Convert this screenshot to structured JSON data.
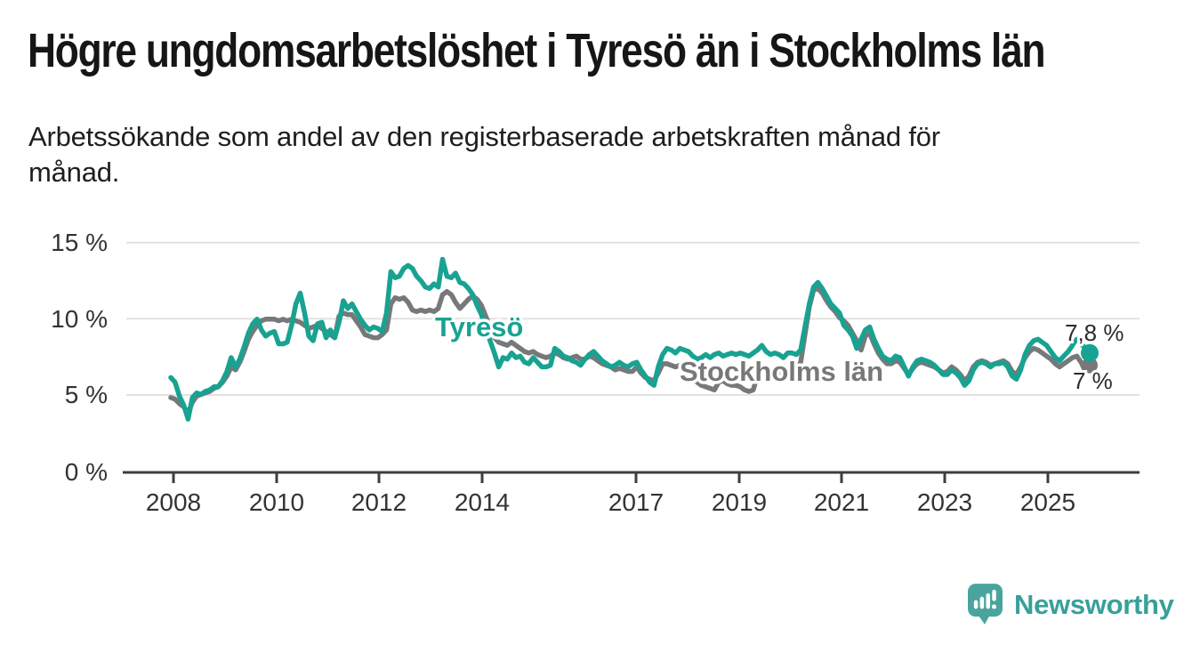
{
  "header": {
    "title": "Högre ungdomsarbetslöshet i Tyresö än i Stockholms län",
    "subtitle": "Arbetssökande som andel av den registerbaserade arbetskraften månad för\nmånad."
  },
  "chart_data": {
    "type": "line",
    "title": "Högre ungdomsarbetslöshet i Tyresö än i Stockholms län",
    "x_axis": {
      "tick_labels": [
        "2008",
        "2010",
        "2012",
        "2014",
        "2017",
        "2019",
        "2021",
        "2023",
        "2025"
      ],
      "range_start": "2008-01",
      "range_end": "2025-10",
      "frequency": "monthly"
    },
    "y_axis": {
      "tick_labels": [
        "15 %",
        "10 %",
        "5 %",
        "0 %"
      ],
      "unit": "%",
      "min": 0,
      "max": 15,
      "gridlines": true
    },
    "legend_position": "inline-labels",
    "series": [
      {
        "name": "Stockholms län",
        "color": "#77787a",
        "end_label": "7 %",
        "end_value": 7.0,
        "values": [
          4.9,
          4.8,
          4.5,
          4.3,
          3.9,
          4.6,
          5.0,
          5.1,
          5.2,
          5.3,
          5.5,
          5.6,
          5.9,
          6.3,
          6.9,
          6.7,
          7.2,
          7.9,
          8.7,
          9.2,
          9.6,
          9.9,
          10.0,
          10.0,
          10.0,
          9.9,
          10.0,
          9.9,
          10.0,
          9.9,
          9.8,
          9.6,
          9.4,
          9.5,
          9.6,
          9.4,
          9.2,
          9.0,
          8.8,
          10.2,
          10.4,
          10.3,
          10.3,
          9.9,
          9.5,
          9.0,
          8.9,
          8.8,
          8.8,
          9.0,
          9.3,
          11.0,
          11.4,
          11.3,
          11.4,
          11.1,
          10.6,
          10.5,
          10.6,
          10.5,
          10.6,
          10.5,
          10.7,
          11.6,
          11.8,
          11.6,
          11.1,
          10.7,
          11.0,
          11.3,
          11.5,
          11.3,
          10.9,
          10.2,
          9.5,
          8.8,
          8.5,
          8.4,
          8.3,
          8.5,
          8.3,
          8.1,
          7.9,
          7.8,
          7.9,
          7.7,
          7.6,
          7.5,
          7.6,
          7.8,
          7.7,
          7.5,
          7.4,
          7.5,
          7.6,
          7.4,
          7.4,
          7.6,
          7.5,
          7.3,
          7.1,
          7.0,
          6.9,
          6.7,
          6.8,
          6.7,
          6.6,
          6.6,
          6.9,
          6.5,
          6.2,
          6.1,
          6.0,
          6.5,
          7.1,
          7.1,
          7.0,
          6.9,
          7.0,
          6.9,
          6.7,
          6.2,
          5.9,
          5.7,
          5.6,
          5.5,
          5.4,
          5.9,
          6.0,
          5.8,
          5.7,
          5.7,
          5.6,
          5.4,
          5.3,
          5.4,
          6.4,
          6.9,
          6.7,
          6.5,
          6.6,
          6.5,
          6.4,
          6.5,
          6.6,
          6.7,
          7.2,
          9.0,
          10.8,
          11.9,
          12.0,
          11.7,
          11.2,
          10.8,
          10.5,
          10.1,
          9.9,
          9.6,
          9.1,
          8.6,
          8.0,
          8.9,
          9.1,
          8.4,
          7.8,
          7.4,
          7.1,
          7.1,
          7.3,
          7.2,
          6.8,
          6.4,
          6.8,
          7.1,
          7.2,
          7.1,
          7.0,
          6.9,
          6.7,
          6.5,
          6.6,
          6.9,
          6.7,
          6.4,
          6.0,
          6.3,
          6.9,
          7.2,
          7.3,
          7.2,
          7.0,
          7.1,
          7.2,
          7.3,
          7.1,
          6.6,
          6.4,
          6.9,
          7.5,
          7.9,
          8.1,
          8.0,
          7.8,
          7.6,
          7.4,
          7.1,
          6.9,
          7.1,
          7.3,
          7.5,
          7.6,
          7.2,
          6.6,
          7.0
        ]
      },
      {
        "name": "Tyresö",
        "color": "#18a292",
        "end_label": "7,8 %",
        "end_value": 7.8,
        "values": [
          6.2,
          5.9,
          5.0,
          4.4,
          3.5,
          4.9,
          5.2,
          5.1,
          5.3,
          5.4,
          5.6,
          5.6,
          6.0,
          6.6,
          7.5,
          6.9,
          7.4,
          8.2,
          9.1,
          9.7,
          10.0,
          9.3,
          8.9,
          9.1,
          9.2,
          8.4,
          8.4,
          8.5,
          9.6,
          11.0,
          11.7,
          10.4,
          8.9,
          8.6,
          9.7,
          9.8,
          8.8,
          9.3,
          8.8,
          9.8,
          11.2,
          10.7,
          11.0,
          10.5,
          10.0,
          9.6,
          9.3,
          9.5,
          9.4,
          9.2,
          10.4,
          13.1,
          12.7,
          12.8,
          13.3,
          13.5,
          13.3,
          12.8,
          12.5,
          12.1,
          12.0,
          12.3,
          12.1,
          13.9,
          12.8,
          12.7,
          13.0,
          12.4,
          12.3,
          12.0,
          11.6,
          10.9,
          10.3,
          9.4,
          8.6,
          7.8,
          6.9,
          7.5,
          7.4,
          7.8,
          7.5,
          7.6,
          7.2,
          7.1,
          7.5,
          7.2,
          6.9,
          6.9,
          7.0,
          8.1,
          7.9,
          7.6,
          7.5,
          7.3,
          7.2,
          7.0,
          7.4,
          7.7,
          7.9,
          7.6,
          7.3,
          7.1,
          6.9,
          7.0,
          7.2,
          7.0,
          6.9,
          7.1,
          7.2,
          6.7,
          6.3,
          5.9,
          5.7,
          6.9,
          7.7,
          8.1,
          8.0,
          7.8,
          8.1,
          8.0,
          7.9,
          7.6,
          7.4,
          7.5,
          7.7,
          7.5,
          7.7,
          7.8,
          7.6,
          7.7,
          7.8,
          7.7,
          7.8,
          7.7,
          7.6,
          7.8,
          8.0,
          8.3,
          7.9,
          7.7,
          7.8,
          7.7,
          7.5,
          7.8,
          7.8,
          7.7,
          8.0,
          9.5,
          11.0,
          12.1,
          12.4,
          12.0,
          11.5,
          11.0,
          10.7,
          10.4,
          9.6,
          9.3,
          8.9,
          8.1,
          8.7,
          9.3,
          9.5,
          8.7,
          8.1,
          7.6,
          7.4,
          7.3,
          7.6,
          7.5,
          6.9,
          6.3,
          6.9,
          7.3,
          7.4,
          7.3,
          7.2,
          7.0,
          6.7,
          6.4,
          6.4,
          6.7,
          6.5,
          6.2,
          5.7,
          6.0,
          6.7,
          7.1,
          7.2,
          7.1,
          6.9,
          7.1,
          7.1,
          7.2,
          6.9,
          6.3,
          6.1,
          6.7,
          7.7,
          8.3,
          8.6,
          8.7,
          8.5,
          8.3,
          7.9,
          7.5,
          7.3,
          7.6,
          7.9,
          8.3,
          8.7,
          8.4,
          8.1,
          7.8
        ]
      }
    ]
  },
  "footer": {
    "logo_text": "Newsworthy"
  },
  "colors": {
    "tyreso_teal": "#18a292",
    "stockholm_gray": "#77787a",
    "grid": "#e2e2e2",
    "axis": "#3d3d3d",
    "title_text": "#161616",
    "logo_teal": "#4aa49d"
  }
}
